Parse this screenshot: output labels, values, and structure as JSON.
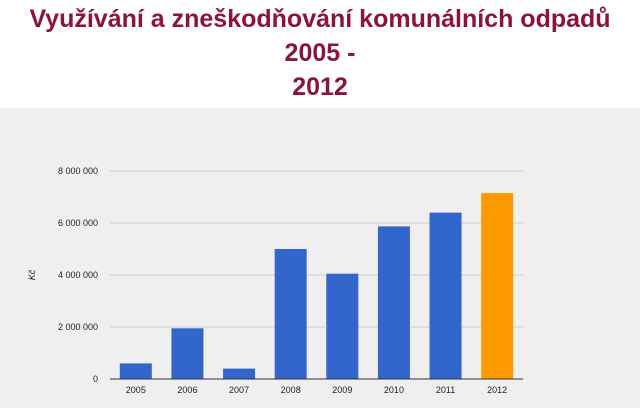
{
  "header": {
    "title_line1": "Využívání a zneškodňování komunálních odpadů 2005 -",
    "title_line2": "2012"
  },
  "colors": {
    "title": "#8c1438",
    "panel_bg": "#efefef",
    "bar_default": "#3366cc",
    "bar_highlight": "#ff9900",
    "gridline": "#cccccc"
  },
  "chart_data": {
    "type": "bar",
    "title": "Využívání a zneškodňování komunálních odpadů 2005 - 2012",
    "xlabel": "",
    "ylabel": "Kč",
    "categories": [
      "2005",
      "2006",
      "2007",
      "2008",
      "2009",
      "2010",
      "2011",
      "2012"
    ],
    "values": [
      600000,
      1950000,
      400000,
      5000000,
      4050000,
      5870000,
      6400000,
      7150000
    ],
    "highlight": [
      "2012"
    ],
    "ylim": [
      0,
      8000000
    ],
    "yticks": [
      0,
      2000000,
      4000000,
      6000000,
      8000000
    ],
    "ytick_labels": [
      "0",
      "2 000 000",
      "4 000 000",
      "6 000 000",
      "8 000 000"
    ],
    "grid": true,
    "legend": "none"
  }
}
